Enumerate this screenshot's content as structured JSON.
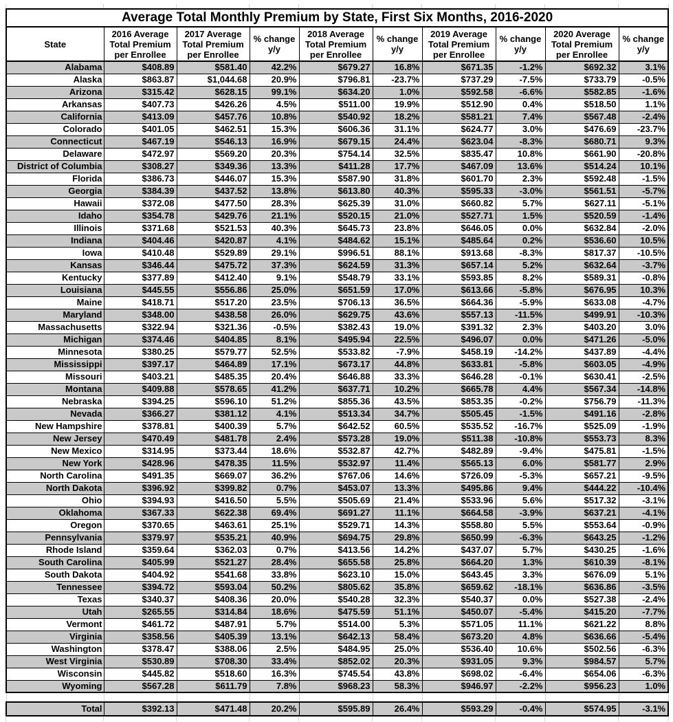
{
  "chart_data": {
    "type": "table",
    "title": "Average Total Monthly Premium by State, First Six Months, 2016-2020",
    "columns": [
      "State",
      "2016 Average\nTotal Premium\nper Enrollee",
      "2017 Average\nTotal Premium\nper Enrollee",
      "% change\ny/y",
      "2018 Average\nTotal Premium\nper Enrollee",
      "% change\ny/y",
      "2019 Average\nTotal Premium\nper Enrollee",
      "% change\ny/y",
      "2020 Average\nTotal Premium\nper Enrollee",
      "% change\ny/y"
    ],
    "rows": [
      [
        "Alabama",
        "$408.89",
        "$581.40",
        "42.2%",
        "$679.27",
        "16.8%",
        "$671.35",
        "-1.2%",
        "$692.32",
        "3.1%"
      ],
      [
        "Alaska",
        "$863.87",
        "$1,044.68",
        "20.9%",
        "$796.81",
        "-23.7%",
        "$737.29",
        "-7.5%",
        "$733.79",
        "-0.5%"
      ],
      [
        "Arizona",
        "$315.42",
        "$628.15",
        "99.1%",
        "$634.20",
        "1.0%",
        "$592.58",
        "-6.6%",
        "$582.85",
        "-1.6%"
      ],
      [
        "Arkansas",
        "$407.73",
        "$426.26",
        "4.5%",
        "$511.00",
        "19.9%",
        "$512.90",
        "0.4%",
        "$518.50",
        "1.1%"
      ],
      [
        "California",
        "$413.09",
        "$457.76",
        "10.8%",
        "$540.92",
        "18.2%",
        "$581.21",
        "7.4%",
        "$567.48",
        "-2.4%"
      ],
      [
        "Colorado",
        "$401.05",
        "$462.51",
        "15.3%",
        "$606.36",
        "31.1%",
        "$624.77",
        "3.0%",
        "$476.69",
        "-23.7%"
      ],
      [
        "Connecticut",
        "$467.19",
        "$546.13",
        "16.9%",
        "$679.15",
        "24.4%",
        "$623.04",
        "-8.3%",
        "$680.71",
        "9.3%"
      ],
      [
        "Delaware",
        "$472.97",
        "$569.20",
        "20.3%",
        "$754.14",
        "32.5%",
        "$835.47",
        "10.8%",
        "$661.90",
        "-20.8%"
      ],
      [
        "District of Columbia",
        "$308.27",
        "$349.36",
        "13.3%",
        "$411.28",
        "17.7%",
        "$467.09",
        "13.6%",
        "$514.24",
        "10.1%"
      ],
      [
        "Florida",
        "$386.73",
        "$446.07",
        "15.3%",
        "$587.90",
        "31.8%",
        "$601.70",
        "2.3%",
        "$592.48",
        "-1.5%"
      ],
      [
        "Georgia",
        "$384.39",
        "$437.52",
        "13.8%",
        "$613.80",
        "40.3%",
        "$595.33",
        "-3.0%",
        "$561.51",
        "-5.7%"
      ],
      [
        "Hawaii",
        "$372.08",
        "$477.50",
        "28.3%",
        "$625.39",
        "31.0%",
        "$660.82",
        "5.7%",
        "$627.11",
        "-5.1%"
      ],
      [
        "Idaho",
        "$354.78",
        "$429.76",
        "21.1%",
        "$520.15",
        "21.0%",
        "$527.71",
        "1.5%",
        "$520.59",
        "-1.4%"
      ],
      [
        "Illinois",
        "$371.68",
        "$521.53",
        "40.3%",
        "$645.73",
        "23.8%",
        "$646.05",
        "0.0%",
        "$632.84",
        "-2.0%"
      ],
      [
        "Indiana",
        "$404.46",
        "$420.87",
        "4.1%",
        "$484.62",
        "15.1%",
        "$485.64",
        "0.2%",
        "$536.60",
        "10.5%"
      ],
      [
        "Iowa",
        "$410.48",
        "$529.89",
        "29.1%",
        "$996.51",
        "88.1%",
        "$913.68",
        "-8.3%",
        "$817.37",
        "-10.5%"
      ],
      [
        "Kansas",
        "$346.44",
        "$475.72",
        "37.3%",
        "$624.59",
        "31.3%",
        "$657.14",
        "5.2%",
        "$632.64",
        "-3.7%"
      ],
      [
        "Kentucky",
        "$377.89",
        "$412.40",
        "9.1%",
        "$548.79",
        "33.1%",
        "$593.85",
        "8.2%",
        "$589.31",
        "-0.8%"
      ],
      [
        "Louisiana",
        "$445.55",
        "$556.86",
        "25.0%",
        "$651.59",
        "17.0%",
        "$613.66",
        "-5.8%",
        "$676.95",
        "10.3%"
      ],
      [
        "Maine",
        "$418.71",
        "$517.20",
        "23.5%",
        "$706.13",
        "36.5%",
        "$664.36",
        "-5.9%",
        "$633.08",
        "-4.7%"
      ],
      [
        "Maryland",
        "$348.00",
        "$438.58",
        "26.0%",
        "$629.75",
        "43.6%",
        "$557.13",
        "-11.5%",
        "$499.91",
        "-10.3%"
      ],
      [
        "Massachusetts",
        "$322.94",
        "$321.36",
        "-0.5%",
        "$382.43",
        "19.0%",
        "$391.32",
        "2.3%",
        "$403.20",
        "3.0%"
      ],
      [
        "Michigan",
        "$374.46",
        "$404.85",
        "8.1%",
        "$495.94",
        "22.5%",
        "$496.07",
        "0.0%",
        "$471.26",
        "-5.0%"
      ],
      [
        "Minnesota",
        "$380.25",
        "$579.77",
        "52.5%",
        "$533.82",
        "-7.9%",
        "$458.19",
        "-14.2%",
        "$437.89",
        "-4.4%"
      ],
      [
        "Mississippi",
        "$397.17",
        "$464.89",
        "17.1%",
        "$673.17",
        "44.8%",
        "$633.81",
        "-5.8%",
        "$603.05",
        "-4.9%"
      ],
      [
        "Missouri",
        "$403.21",
        "$485.35",
        "20.4%",
        "$646.88",
        "33.3%",
        "$646.28",
        "-0.1%",
        "$630.41",
        "-2.5%"
      ],
      [
        "Montana",
        "$409.88",
        "$578.65",
        "41.2%",
        "$637.71",
        "10.2%",
        "$665.78",
        "4.4%",
        "$567.34",
        "-14.8%"
      ],
      [
        "Nebraska",
        "$394.25",
        "$596.10",
        "51.2%",
        "$855.36",
        "43.5%",
        "$853.35",
        "-0.2%",
        "$756.79",
        "-11.3%"
      ],
      [
        "Nevada",
        "$366.27",
        "$381.12",
        "4.1%",
        "$513.34",
        "34.7%",
        "$505.45",
        "-1.5%",
        "$491.16",
        "-2.8%"
      ],
      [
        "New Hampshire",
        "$378.81",
        "$400.39",
        "5.7%",
        "$642.52",
        "60.5%",
        "$535.52",
        "-16.7%",
        "$525.09",
        "-1.9%"
      ],
      [
        "New Jersey",
        "$470.49",
        "$481.78",
        "2.4%",
        "$573.28",
        "19.0%",
        "$511.38",
        "-10.8%",
        "$553.73",
        "8.3%"
      ],
      [
        "New Mexico",
        "$314.95",
        "$373.44",
        "18.6%",
        "$532.87",
        "42.7%",
        "$482.89",
        "-9.4%",
        "$475.81",
        "-1.5%"
      ],
      [
        "New York",
        "$428.96",
        "$478.35",
        "11.5%",
        "$532.97",
        "11.4%",
        "$565.13",
        "6.0%",
        "$581.77",
        "2.9%"
      ],
      [
        "North Carolina",
        "$491.35",
        "$669.07",
        "36.2%",
        "$767.06",
        "14.6%",
        "$726.09",
        "-5.3%",
        "$657.21",
        "-9.5%"
      ],
      [
        "North Dakota",
        "$396.92",
        "$399.82",
        "0.7%",
        "$453.07",
        "13.3%",
        "$495.86",
        "9.4%",
        "$444.22",
        "-10.4%"
      ],
      [
        "Ohio",
        "$394.93",
        "$416.50",
        "5.5%",
        "$505.69",
        "21.4%",
        "$533.96",
        "5.6%",
        "$517.32",
        "-3.1%"
      ],
      [
        "Oklahoma",
        "$367.33",
        "$622.38",
        "69.4%",
        "$691.27",
        "11.1%",
        "$664.58",
        "-3.9%",
        "$637.21",
        "-4.1%"
      ],
      [
        "Oregon",
        "$370.65",
        "$463.61",
        "25.1%",
        "$529.71",
        "14.3%",
        "$558.80",
        "5.5%",
        "$553.64",
        "-0.9%"
      ],
      [
        "Pennsylvania",
        "$379.97",
        "$535.21",
        "40.9%",
        "$694.75",
        "29.8%",
        "$650.99",
        "-6.3%",
        "$643.25",
        "-1.2%"
      ],
      [
        "Rhode Island",
        "$359.64",
        "$362.03",
        "0.7%",
        "$413.56",
        "14.2%",
        "$437.07",
        "5.7%",
        "$430.25",
        "-1.6%"
      ],
      [
        "South Carolina",
        "$405.99",
        "$521.27",
        "28.4%",
        "$655.58",
        "25.8%",
        "$664.20",
        "1.3%",
        "$610.39",
        "-8.1%"
      ],
      [
        "South Dakota",
        "$404.92",
        "$541.68",
        "33.8%",
        "$623.10",
        "15.0%",
        "$643.45",
        "3.3%",
        "$676.09",
        "5.1%"
      ],
      [
        "Tennessee",
        "$394.72",
        "$593.04",
        "50.2%",
        "$805.62",
        "35.8%",
        "$659.62",
        "-18.1%",
        "$636.86",
        "-3.5%"
      ],
      [
        "Texas",
        "$340.37",
        "$408.36",
        "20.0%",
        "$540.28",
        "32.3%",
        "$540.37",
        "0.0%",
        "$527.38",
        "-2.4%"
      ],
      [
        "Utah",
        "$265.55",
        "$314.84",
        "18.6%",
        "$475.59",
        "51.1%",
        "$450.07",
        "-5.4%",
        "$415.20",
        "-7.7%"
      ],
      [
        "Vermont",
        "$461.72",
        "$487.91",
        "5.7%",
        "$514.00",
        "5.3%",
        "$571.05",
        "11.1%",
        "$621.22",
        "8.8%"
      ],
      [
        "Virginia",
        "$358.56",
        "$405.39",
        "13.1%",
        "$642.13",
        "58.4%",
        "$673.20",
        "4.8%",
        "$636.66",
        "-5.4%"
      ],
      [
        "Washington",
        "$378.47",
        "$388.06",
        "2.5%",
        "$484.95",
        "25.0%",
        "$536.40",
        "10.6%",
        "$502.56",
        "-6.3%"
      ],
      [
        "West Virginia",
        "$530.89",
        "$708.30",
        "33.4%",
        "$852.02",
        "20.3%",
        "$931.05",
        "9.3%",
        "$984.57",
        "5.7%"
      ],
      [
        "Wisconsin",
        "$445.82",
        "$518.60",
        "16.3%",
        "$745.54",
        "43.8%",
        "$698.02",
        "-6.4%",
        "$654.06",
        "-6.3%"
      ],
      [
        "Wyoming",
        "$567.28",
        "$611.79",
        "7.8%",
        "$968.23",
        "58.3%",
        "$946.97",
        "-2.2%",
        "$956.23",
        "1.0%"
      ]
    ],
    "total": [
      "Total",
      "$392.13",
      "$471.48",
      "20.2%",
      "$595.89",
      "26.4%",
      "$593.29",
      "-0.4%",
      "$574.95",
      "-3.1%"
    ],
    "layout_hints": {
      "row_shading": "alternating, first data row shaded",
      "colors": {
        "shaded_row": "#c9c9c9",
        "border": "#000000",
        "margin_gridline": "#d4d4d4"
      }
    }
  }
}
